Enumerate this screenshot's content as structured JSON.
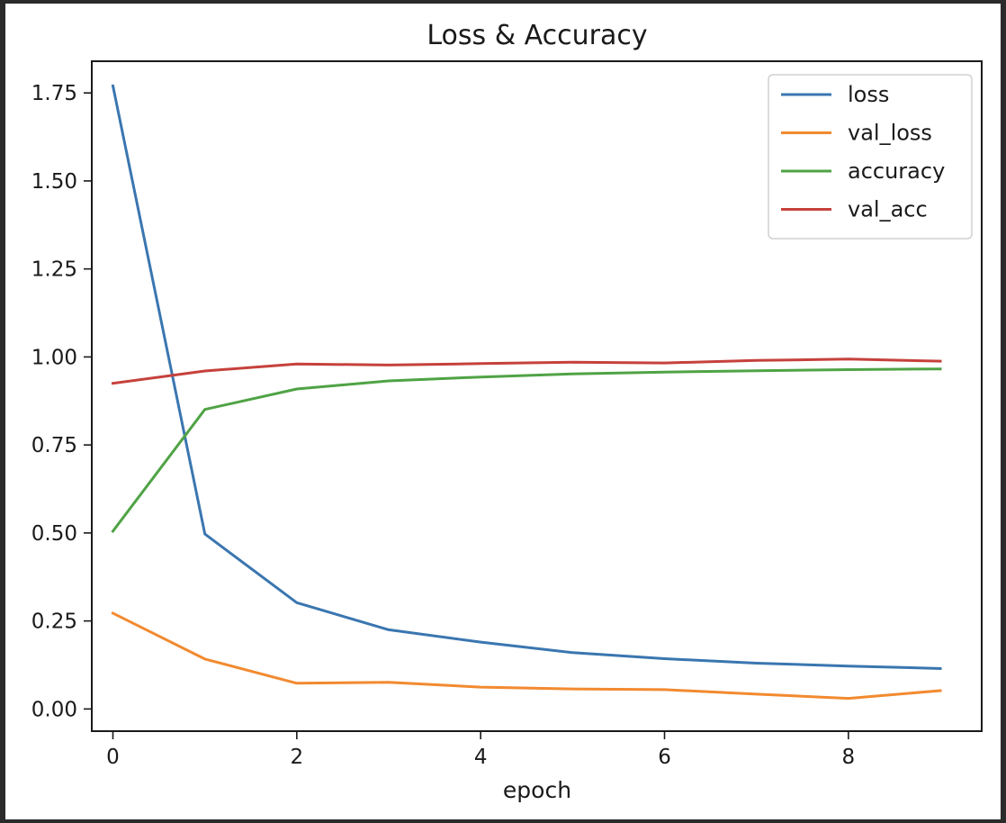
{
  "chart_data": {
    "type": "line",
    "title": "Loss & Accuracy",
    "xlabel": "epoch",
    "ylabel": "",
    "xlim": [
      -0.23,
      9.45
    ],
    "ylim": [
      -0.063,
      1.84
    ],
    "xticks": [
      0,
      2,
      4,
      6,
      8
    ],
    "xtick_labels": [
      "0",
      "2",
      "4",
      "6",
      "8"
    ],
    "yticks": [
      0.0,
      0.25,
      0.5,
      0.75,
      1.0,
      1.25,
      1.5,
      1.75
    ],
    "ytick_labels": [
      "0.00",
      "0.25",
      "0.50",
      "0.75",
      "1.00",
      "1.25",
      "1.50",
      "1.75"
    ],
    "grid": false,
    "legend_position": "top-right",
    "x": [
      0,
      1,
      2,
      3,
      4,
      5,
      6,
      7,
      8,
      9
    ],
    "series": [
      {
        "name": "loss",
        "color": "#3a76b0",
        "values": [
          1.77,
          0.497,
          0.302,
          0.225,
          0.19,
          0.16,
          0.143,
          0.13,
          0.122,
          0.115
        ]
      },
      {
        "name": "val_loss",
        "color": "#f28a30",
        "values": [
          0.272,
          0.142,
          0.073,
          0.076,
          0.062,
          0.057,
          0.055,
          0.042,
          0.03,
          0.052
        ]
      },
      {
        "name": "accuracy",
        "color": "#4fa345",
        "values": [
          0.505,
          0.851,
          0.909,
          0.932,
          0.943,
          0.952,
          0.957,
          0.961,
          0.964,
          0.966
        ]
      },
      {
        "name": "val_acc",
        "color": "#c6413c",
        "values": [
          0.925,
          0.96,
          0.98,
          0.977,
          0.981,
          0.985,
          0.983,
          0.99,
          0.994,
          0.988
        ]
      }
    ]
  }
}
